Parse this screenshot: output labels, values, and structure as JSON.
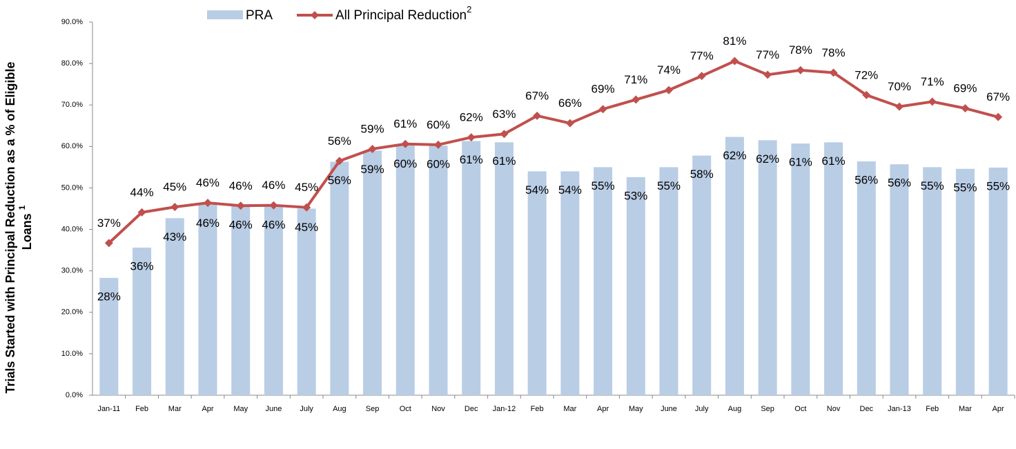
{
  "chart_data": {
    "type": "bar_line",
    "y_label": "Trials Started with Principal Reduction as a % of Eligible Loans",
    "y_label_note": "1",
    "categories": [
      "Jan-11",
      "Feb",
      "Mar",
      "Apr",
      "May",
      "June",
      "July",
      "Aug",
      "Sep",
      "Oct",
      "Nov",
      "Dec",
      "Jan-12",
      "Feb",
      "Mar",
      "Apr",
      "May",
      "June",
      "July",
      "Aug",
      "Sep",
      "Oct",
      "Nov",
      "Dec",
      "Jan-13",
      "Feb",
      "Mar",
      "Apr"
    ],
    "series": [
      {
        "name": "PRA",
        "type": "bar",
        "color": "#b9cde5",
        "values": [
          28.3,
          35.6,
          42.7,
          46,
          45.6,
          45.6,
          45,
          56.3,
          59,
          60.3,
          60.2,
          61.3,
          61,
          54,
          54,
          55,
          52.6,
          55,
          57.8,
          62.3,
          61.5,
          60.7,
          61,
          56.4,
          55.7,
          55,
          54.6,
          54.9
        ],
        "value_labels": [
          "28%",
          "36%",
          "43%",
          "46%",
          "46%",
          "46%",
          "45%",
          "56%",
          "59%",
          "60%",
          "60%",
          "61%",
          "61%",
          "54%",
          "54%",
          "55%",
          "53%",
          "55%",
          "58%",
          "62%",
          "62%",
          "61%",
          "61%",
          "56%",
          "56%",
          "55%",
          "55%",
          "55%"
        ]
      },
      {
        "name": "All Principal Reduction",
        "footnote": "2",
        "type": "line",
        "color": "#c0504d",
        "values": [
          36.7,
          44.1,
          45.4,
          46.4,
          45.7,
          45.8,
          45.3,
          56.5,
          59.4,
          60.6,
          60.4,
          62.2,
          63,
          67.4,
          65.6,
          69,
          71.3,
          73.6,
          77,
          80.6,
          77.3,
          78.4,
          77.8,
          72.4,
          69.6,
          70.8,
          69.2,
          67.1
        ],
        "value_labels": [
          "37%",
          "44%",
          "45%",
          "46%",
          "46%",
          "46%",
          "45%",
          "56%",
          "59%",
          "61%",
          "60%",
          "62%",
          "63%",
          "67%",
          "66%",
          "69%",
          "71%",
          "74%",
          "77%",
          "81%",
          "77%",
          "78%",
          "78%",
          "72%",
          "70%",
          "71%",
          "69%",
          "67%"
        ]
      }
    ],
    "ylim": [
      0,
      90
    ],
    "yticks": [
      {
        "value": 0,
        "label": "0.0%"
      },
      {
        "value": 10,
        "label": "10.0%"
      },
      {
        "value": 20,
        "label": "20.0%"
      },
      {
        "value": 30,
        "label": "30.0%"
      },
      {
        "value": 40,
        "label": "40.0%"
      },
      {
        "value": 50,
        "label": "50.0%"
      },
      {
        "value": 60,
        "label": "60.0%"
      },
      {
        "value": 70,
        "label": "70.0%"
      },
      {
        "value": 80,
        "label": "80.0%"
      },
      {
        "value": 90,
        "label": "90.0%"
      }
    ],
    "legend": "top"
  }
}
